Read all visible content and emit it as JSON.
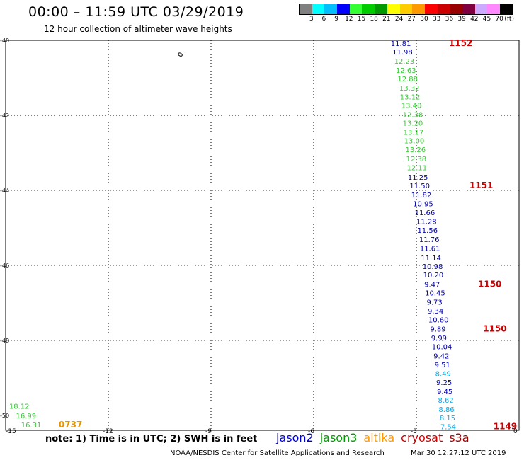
{
  "header": {
    "title": "00:00 – 11:59 UTC 03/29/2019",
    "subtitle": "12 hour collection of altimeter wave heights"
  },
  "legend": {
    "unit": "(ft)",
    "colors": [
      "#808080",
      "#00ffff",
      "#00bfff",
      "#0000ff",
      "#33ff33",
      "#00cc00",
      "#009900",
      "#ffff00",
      "#ffcc00",
      "#ff9900",
      "#ff0000",
      "#cc0000",
      "#990000",
      "#800040",
      "#ccaaff",
      "#ff88ff",
      "#000000"
    ],
    "labels": [
      "3",
      "6",
      "9",
      "12",
      "15",
      "18",
      "21",
      "24",
      "27",
      "30",
      "33",
      "36",
      "39",
      "42",
      "45",
      "70"
    ]
  },
  "axes": {
    "x_ticks": [
      "-15",
      "-12",
      "-9",
      "-6",
      "-3",
      "0"
    ],
    "y_ticks": [
      "-40",
      "-42",
      "-44",
      "-46",
      "-48",
      "-50"
    ]
  },
  "observations": [
    {
      "lon": -3.75,
      "lat": -40.08,
      "value": "11.81",
      "sat": "jason2"
    },
    {
      "lon": -3.7,
      "lat": -40.3,
      "value": "11.98",
      "sat": "jason2"
    },
    {
      "lon": -3.65,
      "lat": -40.55,
      "value": "12.23",
      "sat": "jason3"
    },
    {
      "lon": -3.6,
      "lat": -40.79,
      "value": "12.63",
      "sat": "jason3"
    },
    {
      "lon": -3.55,
      "lat": -41.02,
      "value": "12.88",
      "sat": "jason3"
    },
    {
      "lon": -3.5,
      "lat": -41.26,
      "value": "13.32",
      "sat": "jason3"
    },
    {
      "lon": -3.48,
      "lat": -41.5,
      "value": "13.12",
      "sat": "jason3"
    },
    {
      "lon": -3.44,
      "lat": -41.73,
      "value": "13.40",
      "sat": "jason3"
    },
    {
      "lon": -3.4,
      "lat": -41.97,
      "value": "12.38",
      "sat": "jason3"
    },
    {
      "lon": -3.4,
      "lat": -42.2,
      "value": "13.20",
      "sat": "jason3"
    },
    {
      "lon": -3.38,
      "lat": -42.44,
      "value": "13.17",
      "sat": "jason3"
    },
    {
      "lon": -3.36,
      "lat": -42.67,
      "value": "13.00",
      "sat": "jason3"
    },
    {
      "lon": -3.32,
      "lat": -42.91,
      "value": "13.26",
      "sat": "jason3"
    },
    {
      "lon": -3.3,
      "lat": -43.15,
      "value": "12.38",
      "sat": "jason3"
    },
    {
      "lon": -3.28,
      "lat": -43.39,
      "value": "12.11",
      "sat": "jason3"
    },
    {
      "lon": -3.25,
      "lat": -43.64,
      "value": "11.25",
      "sat": "jason2"
    },
    {
      "lon": -3.2,
      "lat": -43.87,
      "value": "11.50",
      "sat": "jason2"
    },
    {
      "lon": -3.15,
      "lat": -44.11,
      "value": "11.82",
      "sat": "jason2"
    },
    {
      "lon": -3.1,
      "lat": -44.35,
      "value": "10.95",
      "sat": "jason2"
    },
    {
      "lon": -3.05,
      "lat": -44.59,
      "value": "11.66",
      "sat": "jason2"
    },
    {
      "lon": -3.0,
      "lat": -44.82,
      "value": "11.28",
      "sat": "jason2"
    },
    {
      "lon": -2.97,
      "lat": -45.06,
      "value": "11.56",
      "sat": "jason2"
    },
    {
      "lon": -2.92,
      "lat": -45.3,
      "value": "11.76",
      "sat": "jason2"
    },
    {
      "lon": -2.9,
      "lat": -45.54,
      "value": "11.61",
      "sat": "jason2"
    },
    {
      "lon": -2.87,
      "lat": -45.79,
      "value": "11.14",
      "sat": "jason2"
    },
    {
      "lon": -2.82,
      "lat": -46.02,
      "value": "10.98",
      "sat": "jason2"
    },
    {
      "lon": -2.8,
      "lat": -46.25,
      "value": "10.20",
      "sat": "jason2"
    },
    {
      "lon": -2.77,
      "lat": -46.5,
      "value": "9.47",
      "sat": "jason2"
    },
    {
      "lon": -2.75,
      "lat": -46.73,
      "value": "10.45",
      "sat": "jason2"
    },
    {
      "lon": -2.7,
      "lat": -46.97,
      "value": "9.73",
      "sat": "jason2"
    },
    {
      "lon": -2.67,
      "lat": -47.21,
      "value": "9.34",
      "sat": "jason2"
    },
    {
      "lon": -2.65,
      "lat": -47.45,
      "value": "10.60",
      "sat": "jason2"
    },
    {
      "lon": -2.6,
      "lat": -47.69,
      "value": "9.89",
      "sat": "jason2"
    },
    {
      "lon": -2.57,
      "lat": -47.93,
      "value": "9.99",
      "sat": "jason2"
    },
    {
      "lon": -2.55,
      "lat": -48.16,
      "value": "10.04",
      "sat": "jason2"
    },
    {
      "lon": -2.5,
      "lat": -48.41,
      "value": "9.42",
      "sat": "jason2"
    },
    {
      "lon": -2.47,
      "lat": -48.64,
      "value": "9.51",
      "sat": "jason2"
    },
    {
      "lon": -2.45,
      "lat": -48.88,
      "value": "8.49",
      "sat": "cyan"
    },
    {
      "lon": -2.42,
      "lat": -49.12,
      "value": "9.25",
      "sat": "jason2"
    },
    {
      "lon": -2.4,
      "lat": -49.36,
      "value": "9.45",
      "sat": "jason2"
    },
    {
      "lon": -2.37,
      "lat": -49.59,
      "value": "8.62",
      "sat": "cyan"
    },
    {
      "lon": -2.35,
      "lat": -49.83,
      "value": "8.86",
      "sat": "cyan"
    },
    {
      "lon": -2.32,
      "lat": -50.06,
      "value": "8.15",
      "sat": "cyan"
    },
    {
      "lon": -2.3,
      "lat": -50.3,
      "value": "7.54",
      "sat": "cyan"
    },
    {
      "lon": -14.9,
      "lat": -49.75,
      "value": "18.12",
      "sat": "jason3"
    },
    {
      "lon": -14.7,
      "lat": -50.0,
      "value": "16.99",
      "sat": "jason3"
    },
    {
      "lon": -14.55,
      "lat": -50.25,
      "value": "16.31",
      "sat": "jason3"
    }
  ],
  "pass_times": [
    {
      "lon": -2.05,
      "lat": -40.08,
      "value": "1152",
      "color": "#cc0000"
    },
    {
      "lon": -1.45,
      "lat": -43.87,
      "value": "1151",
      "color": "#cc0000"
    },
    {
      "lon": -1.2,
      "lat": -46.5,
      "value": "1150",
      "color": "#cc0000"
    },
    {
      "lon": -1.05,
      "lat": -47.69,
      "value": "1150",
      "color": "#cc0000"
    },
    {
      "lon": -0.75,
      "lat": -50.3,
      "value": "1149",
      "color": "#cc0000"
    },
    {
      "lon": -13.45,
      "lat": -50.25,
      "value": "0737",
      "color": "#e69500"
    }
  ],
  "islands": [
    {
      "lon": -9.9,
      "lat": -40.38
    }
  ],
  "footer": {
    "note": "note: 1) Time is in UTC; 2) SWH is in feet",
    "satellites": [
      {
        "label": "jason2",
        "color": "#0000cc"
      },
      {
        "label": "jason3",
        "color": "#009900"
      },
      {
        "label": "altika",
        "color": "#ff9900"
      },
      {
        "label": "cryosat",
        "color": "#cc0000"
      },
      {
        "label": "s3a",
        "color": "#990000"
      }
    ],
    "credit": "NOAA/NESDIS Center for Satellite Applications and Research",
    "timestamp": "Mar 30 12:27:12 UTC 2019"
  },
  "colors": {
    "jason2": "#0000aa",
    "jason3": "#33cc33",
    "cyan": "#00aaee"
  }
}
